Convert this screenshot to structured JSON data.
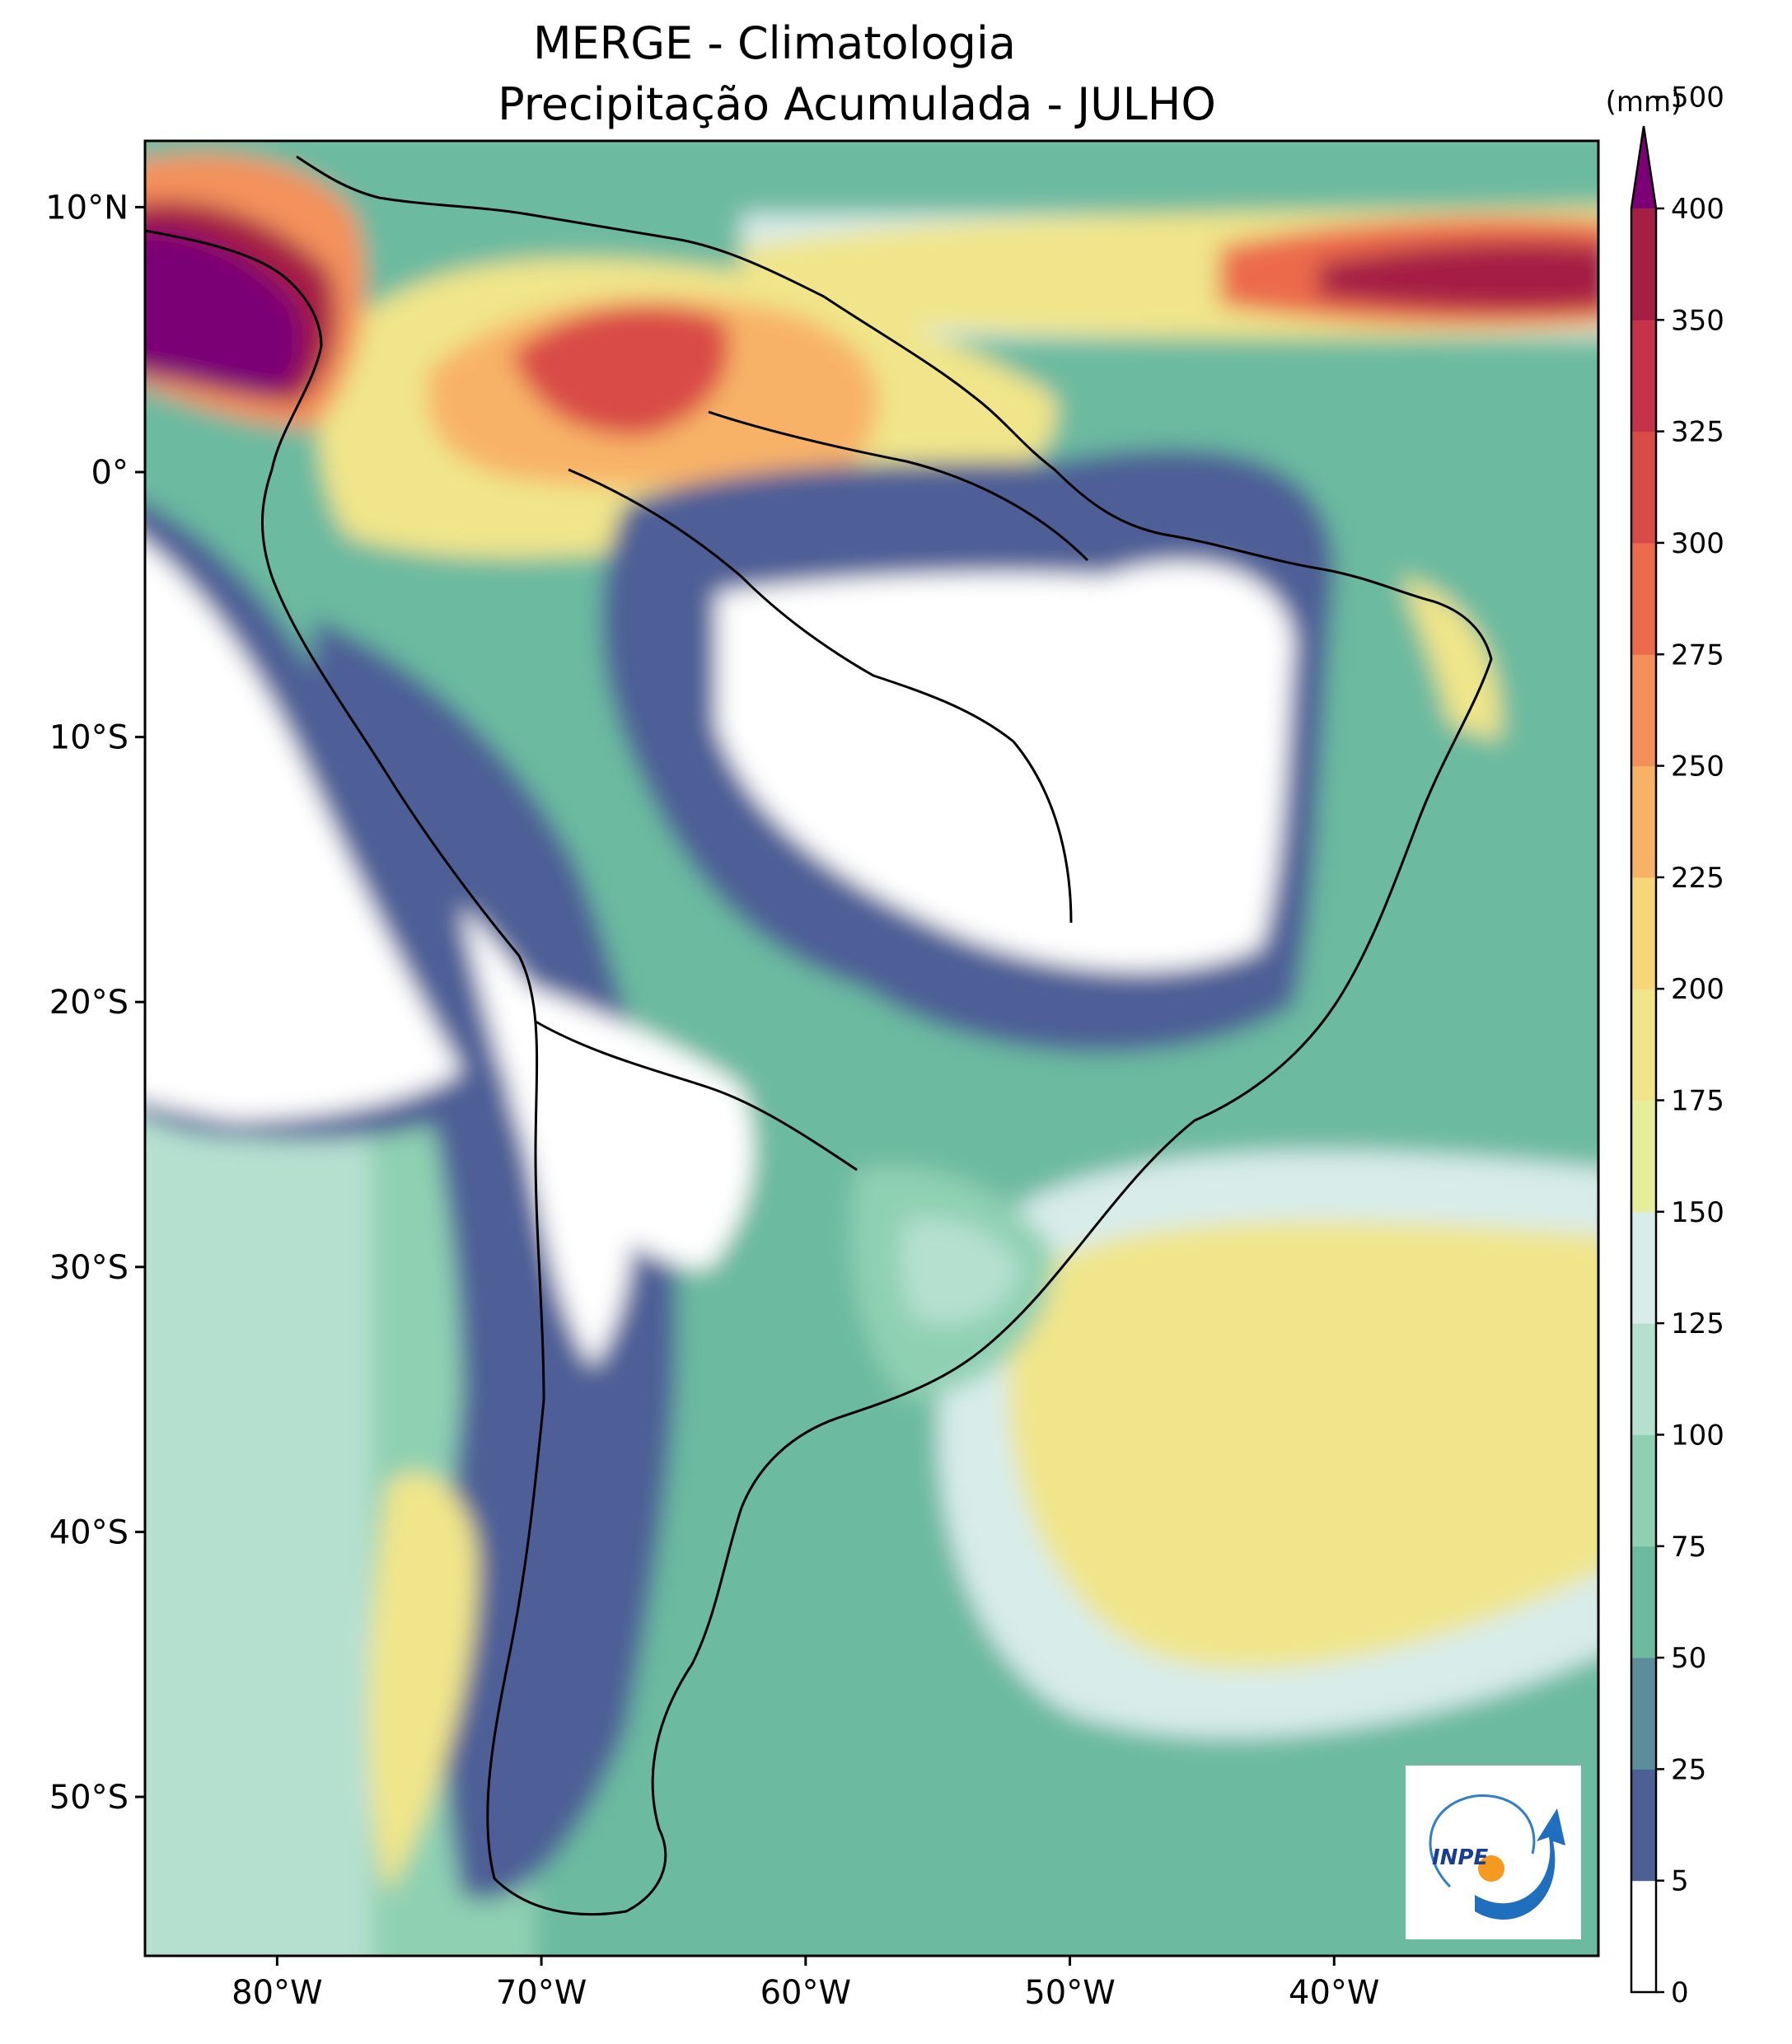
{
  "title": {
    "line1": "MERGE - Climatologia",
    "line2": "Precipitação Acumulada - JULHO"
  },
  "map": {
    "region": "South America",
    "lon_range": [
      -85,
      -30
    ],
    "lat_range": [
      -56,
      12.5
    ],
    "lon_ticks": [
      "80°W",
      "70°W",
      "60°W",
      "50°W",
      "40°W"
    ],
    "lat_ticks": [
      "10°N",
      "0°",
      "10°S",
      "20°S",
      "30°S",
      "40°S",
      "50°S"
    ]
  },
  "colorbar": {
    "unit": "(mm)",
    "levels": [
      "0",
      "5",
      "25",
      "50",
      "75",
      "100",
      "125",
      "150",
      "175",
      "200",
      "225",
      "250",
      "275",
      "300",
      "325",
      "350",
      "400",
      "500"
    ],
    "colors": [
      "#ffffff",
      "#4e5f96",
      "#5c8d9a",
      "#6cbaa0",
      "#8fd0b2",
      "#b5e0d0",
      "#d8ecea",
      "#e6ee9b",
      "#f0e58a",
      "#f7d579",
      "#f8b267",
      "#f4915b",
      "#ec6b4c",
      "#d94b47",
      "#c63249",
      "#a51f45"
    ],
    "extend_color": "#7b0075"
  },
  "logo": {
    "text": "INPE"
  }
}
